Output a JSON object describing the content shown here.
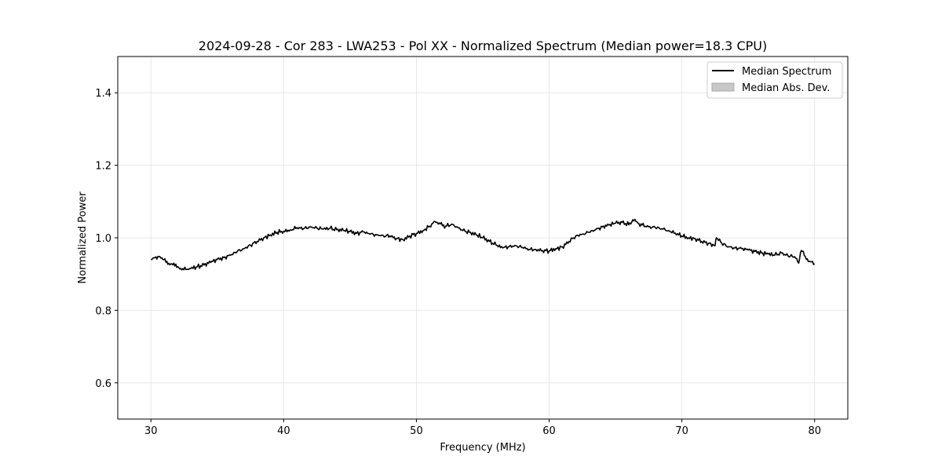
{
  "chart_data": {
    "type": "line",
    "title": "2024-09-28 - Cor 283 - LWA253 - Pol XX - Normalized Spectrum (Median power=18.3 CPU)",
    "xlabel": "Frequency (MHz)",
    "ylabel": "Normalized Power",
    "xlim": [
      27.5,
      82.5
    ],
    "ylim": [
      0.5,
      1.5
    ],
    "xticks": [
      30,
      40,
      50,
      60,
      70,
      80
    ],
    "xtick_labels": [
      "30",
      "40",
      "50",
      "60",
      "70",
      "80"
    ],
    "yticks": [
      0.6,
      0.8,
      1.0,
      1.2,
      1.4
    ],
    "ytick_labels": [
      "0.6",
      "0.8",
      "1.0",
      "1.2",
      "1.4"
    ],
    "grid": true,
    "legend_position": "top-right",
    "legend": [
      {
        "label": "Median Spectrum",
        "kind": "line",
        "color": "#000000"
      },
      {
        "label": "Median Abs. Dev.",
        "kind": "patch",
        "color": "#c8c8c8"
      }
    ],
    "series": [
      {
        "name": "Median Spectrum",
        "color": "#000000",
        "x": [
          30.0,
          30.3,
          30.6,
          30.9,
          31.2,
          31.5,
          31.8,
          32.1,
          32.4,
          32.7,
          33.0,
          33.5,
          34.0,
          34.5,
          35.0,
          35.5,
          36.0,
          36.5,
          37.0,
          37.5,
          38.0,
          38.5,
          39.0,
          39.5,
          40.0,
          40.5,
          41.0,
          41.5,
          42.0,
          42.5,
          43.0,
          43.5,
          44.0,
          44.5,
          45.0,
          45.5,
          46.0,
          46.5,
          47.0,
          47.5,
          48.0,
          48.5,
          49.0,
          49.5,
          50.0,
          50.5,
          51.0,
          51.4,
          51.8,
          52.2,
          52.6,
          53.0,
          53.5,
          54.0,
          54.5,
          55.0,
          55.5,
          56.0,
          56.5,
          57.0,
          57.5,
          58.0,
          58.5,
          59.0,
          59.5,
          60.0,
          60.5,
          61.0,
          61.5,
          62.0,
          62.5,
          63.0,
          63.5,
          64.0,
          64.5,
          65.0,
          65.5,
          66.0,
          66.3,
          66.7,
          67.0,
          67.5,
          68.0,
          68.5,
          69.0,
          69.5,
          70.0,
          70.5,
          71.0,
          71.5,
          72.0,
          72.5,
          72.6,
          73.0,
          73.5,
          74.0,
          74.5,
          75.0,
          75.5,
          76.0,
          76.5,
          77.0,
          77.5,
          78.0,
          78.5,
          78.8,
          79.0,
          79.3,
          79.6,
          80.0
        ],
        "values": [
          0.94,
          0.945,
          0.948,
          0.94,
          0.935,
          0.928,
          0.922,
          0.918,
          0.915,
          0.913,
          0.915,
          0.92,
          0.925,
          0.932,
          0.94,
          0.945,
          0.952,
          0.962,
          0.97,
          0.98,
          0.99,
          1.0,
          1.008,
          1.015,
          1.018,
          1.022,
          1.028,
          1.025,
          1.03,
          1.027,
          1.024,
          1.026,
          1.022,
          1.02,
          1.017,
          1.012,
          1.016,
          1.01,
          1.008,
          1.006,
          1.005,
          0.998,
          0.995,
          1.005,
          1.012,
          1.02,
          1.032,
          1.045,
          1.038,
          1.032,
          1.036,
          1.03,
          1.02,
          1.015,
          1.008,
          1.0,
          0.99,
          0.98,
          0.972,
          0.976,
          0.978,
          0.973,
          0.968,
          0.968,
          0.965,
          0.964,
          0.97,
          0.975,
          0.99,
          1.005,
          1.01,
          1.015,
          1.022,
          1.03,
          1.035,
          1.04,
          1.042,
          1.036,
          1.05,
          1.04,
          1.035,
          1.03,
          1.028,
          1.025,
          1.02,
          1.013,
          1.005,
          1.0,
          0.998,
          0.99,
          0.985,
          0.978,
          1.0,
          0.985,
          0.975,
          0.972,
          0.97,
          0.966,
          0.962,
          0.958,
          0.955,
          0.952,
          0.958,
          0.95,
          0.948,
          0.93,
          0.965,
          0.948,
          0.935,
          0.928
        ]
      }
    ]
  }
}
